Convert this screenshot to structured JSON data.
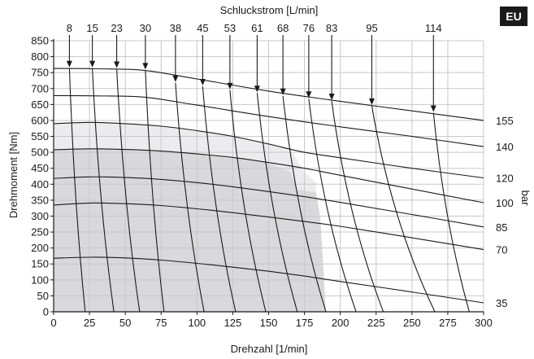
{
  "badge": "EU",
  "chart_data": {
    "type": "line",
    "title": "Schluckstrom [L/min]",
    "xlabel": "Drehzahl [1/min]",
    "ylabel": "Drehmoment [Nm]",
    "right_axis_label": "bar",
    "xlim": [
      0,
      300
    ],
    "ylim": [
      0,
      850
    ],
    "x_ticks": [
      0,
      25,
      50,
      75,
      100,
      125,
      150,
      175,
      200,
      225,
      250,
      275,
      300
    ],
    "y_ticks": [
      0,
      50,
      100,
      150,
      200,
      250,
      300,
      350,
      400,
      450,
      500,
      550,
      600,
      650,
      700,
      750,
      800,
      850
    ],
    "grid": true,
    "colors": {
      "region_dark": "#d9d9dc",
      "region_light": "#ececee",
      "line": "#1a1a1a",
      "grid": "#c8c8c8"
    },
    "shaded_regions": [
      {
        "shade": "light",
        "points": [
          [
            0,
            0
          ],
          [
            0,
            590
          ],
          [
            25,
            594
          ],
          [
            50,
            590
          ],
          [
            75,
            582
          ],
          [
            100,
            570
          ],
          [
            125,
            552
          ],
          [
            150,
            530
          ],
          [
            165,
            510
          ],
          [
            168,
            490
          ],
          [
            175,
            438
          ],
          [
            183,
            406
          ],
          [
            183,
            0
          ]
        ]
      },
      {
        "shade": "dark",
        "points": [
          [
            0,
            0
          ],
          [
            0,
            508
          ],
          [
            25,
            510
          ],
          [
            50,
            508
          ],
          [
            75,
            503
          ],
          [
            100,
            497
          ],
          [
            125,
            485
          ],
          [
            150,
            465
          ],
          [
            165,
            440
          ],
          [
            170,
            382
          ],
          [
            183,
            375
          ],
          [
            186,
            300
          ],
          [
            190,
            0
          ]
        ]
      }
    ],
    "pressure_curves": [
      {
        "name": "155",
        "points": [
          [
            0,
            763
          ],
          [
            30,
            762
          ],
          [
            63,
            757
          ],
          [
            100,
            730
          ],
          [
            150,
            692
          ],
          [
            200,
            660
          ],
          [
            250,
            630
          ],
          [
            300,
            600
          ]
        ]
      },
      {
        "name": "140",
        "points": [
          [
            0,
            678
          ],
          [
            30,
            677
          ],
          [
            63,
            673
          ],
          [
            100,
            648
          ],
          [
            150,
            612
          ],
          [
            200,
            580
          ],
          [
            250,
            550
          ],
          [
            300,
            518
          ]
        ]
      },
      {
        "name": "120",
        "points": [
          [
            0,
            590
          ],
          [
            25,
            594
          ],
          [
            50,
            590
          ],
          [
            75,
            582
          ],
          [
            100,
            568
          ],
          [
            125,
            550
          ],
          [
            150,
            526
          ],
          [
            175,
            500
          ],
          [
            200,
            483
          ],
          [
            250,
            450
          ],
          [
            300,
            420
          ]
        ]
      },
      {
        "name": "100",
        "points": [
          [
            0,
            508
          ],
          [
            25,
            511
          ],
          [
            50,
            509
          ],
          [
            75,
            504
          ],
          [
            100,
            495
          ],
          [
            125,
            484
          ],
          [
            150,
            468
          ],
          [
            175,
            450
          ],
          [
            200,
            428
          ],
          [
            250,
            385
          ],
          [
            300,
            342
          ]
        ]
      },
      {
        "name": "85",
        "points": [
          [
            0,
            418
          ],
          [
            25,
            423
          ],
          [
            50,
            421
          ],
          [
            75,
            415
          ],
          [
            100,
            405
          ],
          [
            125,
            392
          ],
          [
            150,
            377
          ],
          [
            175,
            361
          ],
          [
            200,
            343
          ],
          [
            250,
            305
          ],
          [
            300,
            266
          ]
        ]
      },
      {
        "name": "70",
        "points": [
          [
            0,
            335
          ],
          [
            25,
            341
          ],
          [
            50,
            339
          ],
          [
            75,
            333
          ],
          [
            100,
            323
          ],
          [
            125,
            311
          ],
          [
            150,
            297
          ],
          [
            175,
            283
          ],
          [
            200,
            268
          ],
          [
            250,
            232
          ],
          [
            300,
            195
          ]
        ]
      },
      {
        "name": "35",
        "points": [
          [
            0,
            168
          ],
          [
            25,
            171
          ],
          [
            50,
            169
          ],
          [
            75,
            162
          ],
          [
            100,
            152
          ],
          [
            125,
            140
          ],
          [
            150,
            127
          ],
          [
            175,
            112
          ],
          [
            200,
            95
          ],
          [
            250,
            62
          ],
          [
            300,
            28
          ]
        ]
      }
    ],
    "flow_curves": [
      {
        "label": "8",
        "start": [
          11,
          764
        ],
        "end": [
          22,
          0
        ]
      },
      {
        "label": "15",
        "start": [
          27,
          764
        ],
        "end": [
          42,
          0
        ]
      },
      {
        "label": "23",
        "start": [
          44,
          762
        ],
        "end": [
          60,
          0
        ]
      },
      {
        "label": "30",
        "start": [
          64,
          757
        ],
        "end": [
          77,
          0
        ]
      },
      {
        "label": "38",
        "start": [
          85,
          718
        ],
        "end": [
          105,
          0
        ]
      },
      {
        "label": "45",
        "start": [
          104,
          707
        ],
        "end": [
          127,
          0
        ]
      },
      {
        "label": "53",
        "start": [
          123,
          695
        ],
        "end": [
          148,
          0
        ]
      },
      {
        "label": "61",
        "start": [
          142,
          686
        ],
        "end": [
          170,
          0
        ]
      },
      {
        "label": "68",
        "start": [
          160,
          677
        ],
        "end": [
          190,
          0
        ]
      },
      {
        "label": "76",
        "start": [
          178,
          668
        ],
        "end": [
          211,
          0
        ]
      },
      {
        "label": "83",
        "start": [
          194,
          661
        ],
        "end": [
          230,
          0
        ]
      },
      {
        "label": "95",
        "start": [
          222,
          646
        ],
        "end": [
          266,
          0
        ]
      },
      {
        "label": "114",
        "start": [
          265,
          624
        ],
        "end": [
          290,
          0
        ]
      }
    ]
  }
}
